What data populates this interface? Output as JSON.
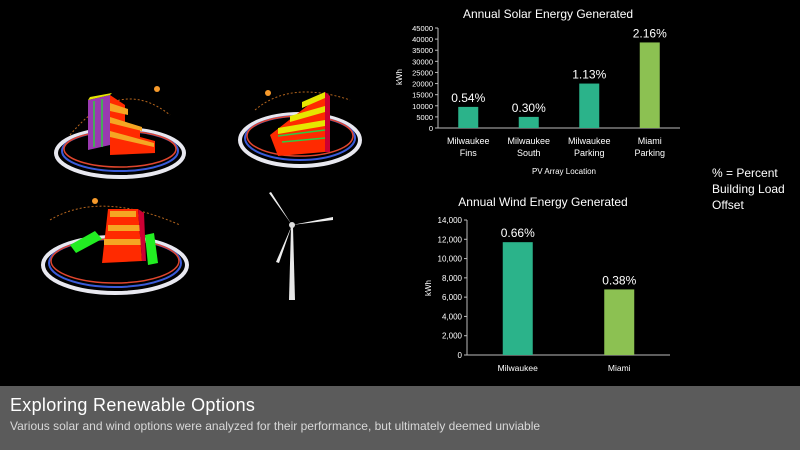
{
  "slide": {
    "title": "Exploring Renewable Options",
    "subtitle": "Various solar and wind options were analyzed for their performance, but ultimately deemed unviable",
    "note": "% = Percent Building Load Offset"
  },
  "chart_data": [
    {
      "type": "bar",
      "title": "Annual Solar Energy Generated",
      "xlabel": "PV Array Location",
      "ylabel": "kWh",
      "categories": [
        "Milwaukee Fins",
        "Milwaukee South",
        "Milwaukee Parking",
        "Miami Parking"
      ],
      "categories_lines": [
        [
          "Milwaukee",
          "Fins"
        ],
        [
          "Milwaukee",
          "South"
        ],
        [
          "Milwaukee",
          "Parking"
        ],
        [
          "Miami",
          "Parking"
        ]
      ],
      "values": [
        9500,
        5000,
        20000,
        38500
      ],
      "data_labels": [
        "0.54%",
        "0.30%",
        "1.13%",
        "2.16%"
      ],
      "ylim": [
        0,
        45000
      ],
      "yticks": [
        0,
        5000,
        10000,
        15000,
        20000,
        25000,
        30000,
        35000,
        40000,
        45000
      ],
      "ytick_labels": [
        "0",
        "5000",
        "10000",
        "15000",
        "20000",
        "25000",
        "30000",
        "35000",
        "40000",
        "45000"
      ],
      "colors": [
        "#2bb38a",
        "#2bb38a",
        "#2bb38a",
        "#8cc152"
      ],
      "grid": false
    },
    {
      "type": "bar",
      "title": "Annual Wind Energy Generated",
      "xlabel": "",
      "ylabel": "kWh",
      "categories": [
        "Milwaukee",
        "Miami"
      ],
      "values": [
        11700,
        6800
      ],
      "data_labels": [
        "0.66%",
        "0.38%"
      ],
      "ylim": [
        0,
        14000
      ],
      "yticks": [
        0,
        2000,
        4000,
        6000,
        8000,
        10000,
        12000,
        14000
      ],
      "ytick_labels": [
        "0",
        "2,000",
        "4,000",
        "6,000",
        "8,000",
        "10,000",
        "12,000",
        "14,000"
      ],
      "colors": [
        "#2bb38a",
        "#8cc152"
      ],
      "grid": false
    }
  ]
}
